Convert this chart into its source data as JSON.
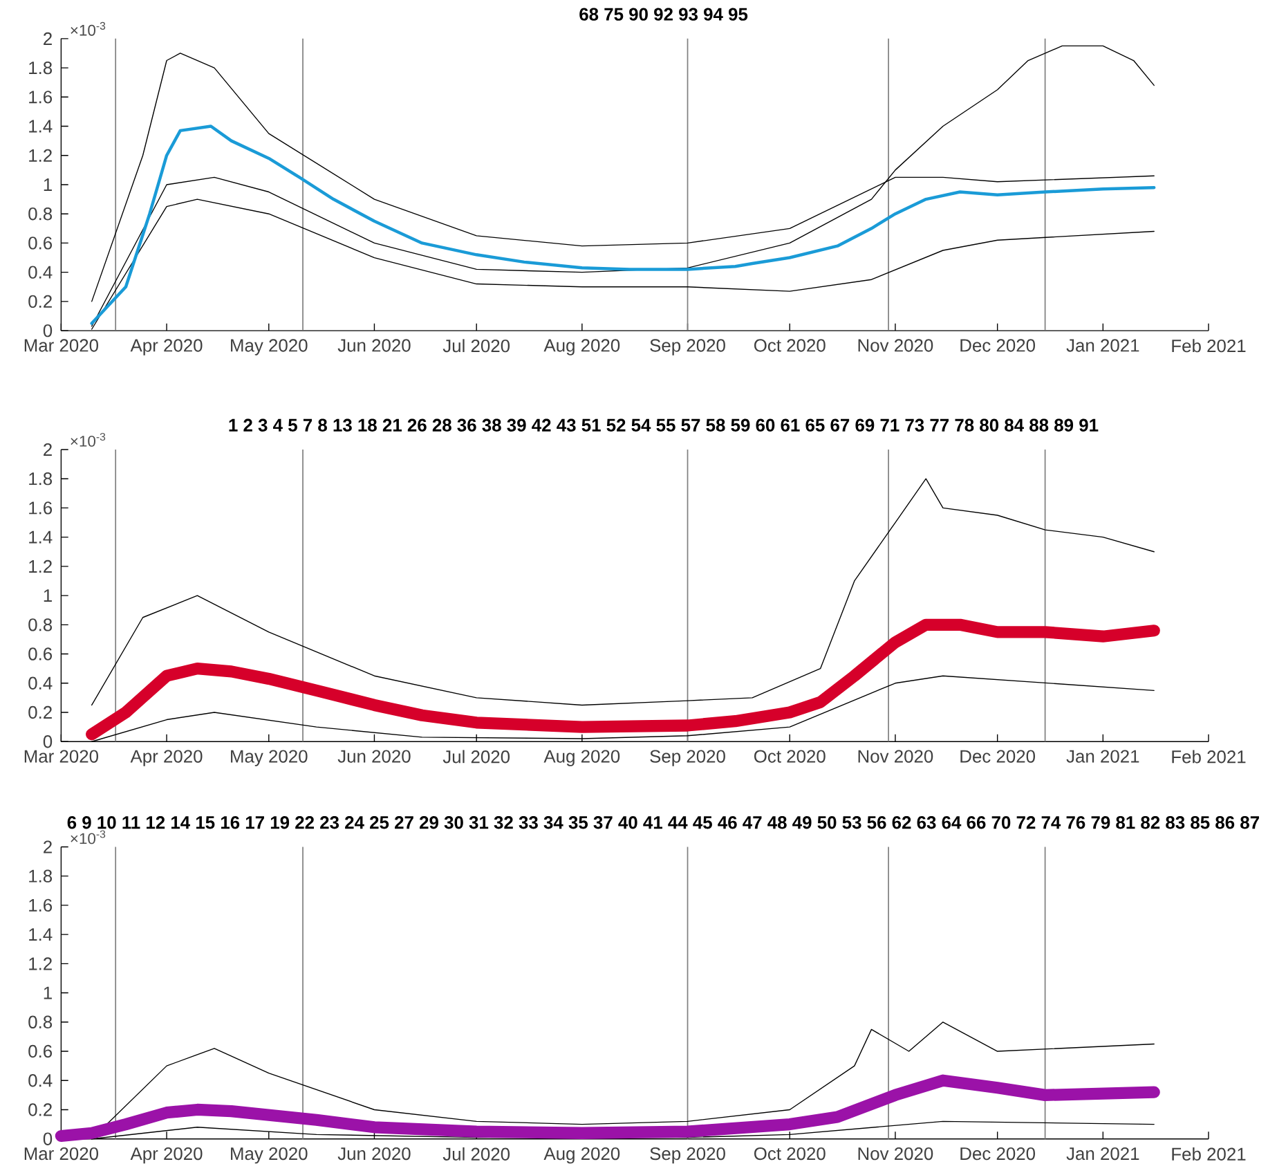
{
  "chart_data": [
    {
      "type": "line",
      "title": "68 75 90 92 93 94 95",
      "annotations": [
        "×10$^{-3}$"
      ],
      "xlim": [
        "2020-03-01",
        "2021-02-01"
      ],
      "xticks": [
        {
          "value": "2020-03-01",
          "label": "Mar 2020"
        },
        {
          "value": "2020-04-01",
          "label": "Apr 2020"
        },
        {
          "value": "2020-05-01",
          "label": "May 2020"
        },
        {
          "value": "2020-06-01",
          "label": "Jun 2020"
        },
        {
          "value": "2020-07-01",
          "label": "Jul 2020"
        },
        {
          "value": "2020-08-01",
          "label": "Aug 2020"
        },
        {
          "value": "2020-09-01",
          "label": "Sep 2020"
        },
        {
          "value": "2020-10-01",
          "label": "Oct 2020"
        },
        {
          "value": "2020-11-01",
          "label": "Nov 2020"
        },
        {
          "value": "2020-12-01",
          "label": "Dec 2020"
        },
        {
          "value": "2021-01-01",
          "label": "Jan 2021"
        },
        {
          "value": "2021-02-01",
          "label": "Feb 2021"
        }
      ],
      "ylim": [
        0,
        2
      ],
      "yticks": [
        0,
        0.2,
        0.4,
        0.6,
        0.8,
        1,
        1.2,
        1.4,
        1.6,
        1.8,
        2
      ],
      "ref_lines": [
        {
          "axis": "x",
          "value": "2020-03-17",
          "color": "#808080"
        },
        {
          "axis": "x",
          "value": "2020-05-11",
          "color": "#808080"
        },
        {
          "axis": "x",
          "value": "2020-09-01",
          "color": "#808080"
        },
        {
          "axis": "x",
          "value": "2020-10-30",
          "color": "#808080"
        },
        {
          "axis": "x",
          "value": "2020-12-15",
          "color": "#808080"
        }
      ],
      "series": [
        {
          "color": "#000000",
          "x": [
            "2020-03-10",
            "2020-04-01",
            "2020-04-15",
            "2020-05-01",
            "2020-06-01",
            "2020-07-01",
            "2020-08-01",
            "2020-09-01",
            "2020-10-01",
            "2020-10-25",
            "2020-11-01",
            "2020-11-15",
            "2020-12-01",
            "2020-12-10",
            "2020-12-20",
            "2021-01-01",
            "2021-01-10",
            "2021-01-16"
          ],
          "values": [
            0.03,
            1.0,
            1.05,
            0.95,
            0.6,
            0.42,
            0.4,
            0.43,
            0.6,
            0.9,
            1.1,
            1.4,
            1.65,
            1.85,
            1.95,
            1.95,
            1.85,
            1.68
          ]
        },
        {
          "color": "#000000",
          "x": [
            "2020-03-10",
            "2020-03-25",
            "2020-04-01",
            "2020-04-05",
            "2020-04-15",
            "2020-05-01",
            "2020-06-01",
            "2020-07-01",
            "2020-08-01",
            "2020-09-01",
            "2020-10-01",
            "2020-11-01",
            "2020-11-15",
            "2020-12-01",
            "2021-01-16"
          ],
          "values": [
            0.2,
            1.2,
            1.85,
            1.9,
            1.8,
            1.35,
            0.9,
            0.65,
            0.58,
            0.6,
            0.7,
            1.05,
            1.05,
            1.02,
            1.06
          ]
        },
        {
          "color": "#000000",
          "x": [
            "2020-03-10",
            "2020-04-01",
            "2020-04-10",
            "2020-05-01",
            "2020-06-01",
            "2020-07-01",
            "2020-08-01",
            "2020-09-01",
            "2020-10-01",
            "2020-10-25",
            "2020-11-15",
            "2020-12-01",
            "2021-01-16"
          ],
          "values": [
            0.01,
            0.85,
            0.9,
            0.8,
            0.5,
            0.32,
            0.3,
            0.3,
            0.27,
            0.35,
            0.55,
            0.62,
            0.68
          ]
        },
        {
          "color": "#1a9bd7",
          "x": [
            "2020-03-10",
            "2020-03-20",
            "2020-03-27",
            "2020-04-01",
            "2020-04-05",
            "2020-04-14",
            "2020-04-20",
            "2020-05-01",
            "2020-05-10",
            "2020-05-20",
            "2020-06-01",
            "2020-06-15",
            "2020-07-01",
            "2020-07-15",
            "2020-08-01",
            "2020-08-15",
            "2020-09-01",
            "2020-09-15",
            "2020-09-20",
            "2020-10-01",
            "2020-10-15",
            "2020-10-25",
            "2020-11-01",
            "2020-11-10",
            "2020-11-20",
            "2020-12-01",
            "2020-12-15",
            "2021-01-01",
            "2021-01-16"
          ],
          "values": [
            0.05,
            0.3,
            0.8,
            1.2,
            1.37,
            1.4,
            1.3,
            1.18,
            1.05,
            0.9,
            0.75,
            0.6,
            0.52,
            0.47,
            0.43,
            0.42,
            0.42,
            0.44,
            0.46,
            0.5,
            0.58,
            0.7,
            0.8,
            0.9,
            0.95,
            0.93,
            0.95,
            0.97,
            0.98
          ]
        }
      ]
    },
    {
      "type": "line",
      "title": "1 2 3 4 5 7 8 13 18 21 26 28 36 38 39 42 43 51 52 54 55 57 58 59 60 61 65 67 69 71 73 77 78 80 84 88 89 91",
      "annotations": [
        "×10$^{-3}$"
      ],
      "xlim": [
        "2020-03-01",
        "2021-02-01"
      ],
      "xticks": [
        {
          "value": "2020-03-01",
          "label": "Mar 2020"
        },
        {
          "value": "2020-04-01",
          "label": "Apr 2020"
        },
        {
          "value": "2020-05-01",
          "label": "May 2020"
        },
        {
          "value": "2020-06-01",
          "label": "Jun 2020"
        },
        {
          "value": "2020-07-01",
          "label": "Jul 2020"
        },
        {
          "value": "2020-08-01",
          "label": "Aug 2020"
        },
        {
          "value": "2020-09-01",
          "label": "Sep 2020"
        },
        {
          "value": "2020-10-01",
          "label": "Oct 2020"
        },
        {
          "value": "2020-11-01",
          "label": "Nov 2020"
        },
        {
          "value": "2020-12-01",
          "label": "Dec 2020"
        },
        {
          "value": "2021-01-01",
          "label": "Jan 2021"
        },
        {
          "value": "2021-02-01",
          "label": "Feb 2021"
        }
      ],
      "ylim": [
        0,
        2
      ],
      "yticks": [
        0,
        0.2,
        0.4,
        0.6,
        0.8,
        1,
        1.2,
        1.4,
        1.6,
        1.8,
        2
      ],
      "ref_lines": [
        {
          "axis": "x",
          "value": "2020-03-17",
          "color": "#808080"
        },
        {
          "axis": "x",
          "value": "2020-05-11",
          "color": "#808080"
        },
        {
          "axis": "x",
          "value": "2020-09-01",
          "color": "#808080"
        },
        {
          "axis": "x",
          "value": "2020-10-30",
          "color": "#808080"
        },
        {
          "axis": "x",
          "value": "2020-12-15",
          "color": "#808080"
        }
      ],
      "series": [
        {
          "color": "#000000",
          "x": [
            "2020-03-10",
            "2020-03-25",
            "2020-04-10",
            "2020-05-01",
            "2020-06-01",
            "2020-07-01",
            "2020-08-01",
            "2020-09-01",
            "2020-09-20",
            "2020-10-10",
            "2020-10-20",
            "2020-11-01",
            "2020-11-10",
            "2020-11-15",
            "2020-12-01",
            "2020-12-15",
            "2021-01-01",
            "2021-01-16"
          ],
          "values": [
            0.25,
            0.85,
            1.0,
            0.75,
            0.45,
            0.3,
            0.25,
            0.28,
            0.3,
            0.5,
            1.1,
            1.5,
            1.8,
            1.6,
            1.55,
            1.45,
            1.4,
            1.3
          ]
        },
        {
          "color": "#000000",
          "x": [
            "2020-03-10",
            "2020-04-01",
            "2020-04-15",
            "2020-05-15",
            "2020-06-15",
            "2020-08-01",
            "2020-09-01",
            "2020-10-01",
            "2020-11-01",
            "2020-11-15",
            "2021-01-16"
          ],
          "values": [
            0,
            0.15,
            0.2,
            0.1,
            0.03,
            0.02,
            0.04,
            0.1,
            0.4,
            0.45,
            0.35
          ]
        },
        {
          "color": "#d6002a",
          "x": [
            "2020-03-10",
            "2020-03-20",
            "2020-04-01",
            "2020-04-10",
            "2020-04-20",
            "2020-05-01",
            "2020-05-15",
            "2020-06-01",
            "2020-06-15",
            "2020-07-01",
            "2020-08-01",
            "2020-09-01",
            "2020-09-15",
            "2020-10-01",
            "2020-10-10",
            "2020-10-20",
            "2020-11-01",
            "2020-11-10",
            "2020-11-20",
            "2020-12-01",
            "2020-12-15",
            "2021-01-01",
            "2021-01-16"
          ],
          "values": [
            0.05,
            0.2,
            0.45,
            0.5,
            0.48,
            0.43,
            0.35,
            0.25,
            0.18,
            0.13,
            0.1,
            0.11,
            0.14,
            0.2,
            0.27,
            0.45,
            0.68,
            0.8,
            0.8,
            0.75,
            0.75,
            0.72,
            0.76
          ]
        }
      ]
    },
    {
      "type": "line",
      "title": "6 9 10 11 12 14 15 16 17 19 22 23 24 25 27 29 30 31 32 33 34 35 37 40 41 44 45 46 47 48 49 50 53 56 62 63 64 66 70 72 74 76 79 81 82 83 85 86 87",
      "annotations": [
        "×10$^{-3}$"
      ],
      "xlim": [
        "2020-03-01",
        "2021-02-01"
      ],
      "xticks": [
        {
          "value": "2020-03-01",
          "label": "Mar 2020"
        },
        {
          "value": "2020-04-01",
          "label": "Apr 2020"
        },
        {
          "value": "2020-05-01",
          "label": "May 2020"
        },
        {
          "value": "2020-06-01",
          "label": "Jun 2020"
        },
        {
          "value": "2020-07-01",
          "label": "Jul 2020"
        },
        {
          "value": "2020-08-01",
          "label": "Aug 2020"
        },
        {
          "value": "2020-09-01",
          "label": "Sep 2020"
        },
        {
          "value": "2020-10-01",
          "label": "Oct 2020"
        },
        {
          "value": "2020-11-01",
          "label": "Nov 2020"
        },
        {
          "value": "2020-12-01",
          "label": "Dec 2020"
        },
        {
          "value": "2021-01-01",
          "label": "Jan 2021"
        },
        {
          "value": "2021-02-01",
          "label": "Feb 2021"
        }
      ],
      "ylim": [
        0,
        2
      ],
      "yticks": [
        0,
        0.2,
        0.4,
        0.6,
        0.8,
        1,
        1.2,
        1.4,
        1.6,
        1.8,
        2
      ],
      "ref_lines": [
        {
          "axis": "x",
          "value": "2020-03-17",
          "color": "#808080"
        },
        {
          "axis": "x",
          "value": "2020-05-11",
          "color": "#808080"
        },
        {
          "axis": "x",
          "value": "2020-09-01",
          "color": "#808080"
        },
        {
          "axis": "x",
          "value": "2020-10-30",
          "color": "#808080"
        },
        {
          "axis": "x",
          "value": "2020-12-15",
          "color": "#808080"
        }
      ],
      "series": [
        {
          "color": "#000000",
          "x": [
            "2020-03-10",
            "2020-04-01",
            "2020-04-15",
            "2020-05-01",
            "2020-06-01",
            "2020-07-01",
            "2020-08-01",
            "2020-09-01",
            "2020-10-01",
            "2020-10-20",
            "2020-10-25",
            "2020-11-05",
            "2020-11-15",
            "2020-12-01",
            "2021-01-16"
          ],
          "values": [
            0,
            0.5,
            0.62,
            0.45,
            0.2,
            0.12,
            0.1,
            0.12,
            0.2,
            0.5,
            0.75,
            0.6,
            0.8,
            0.6,
            0.65
          ]
        },
        {
          "color": "#000000",
          "x": [
            "2020-03-10",
            "2020-04-10",
            "2020-05-15",
            "2020-07-01",
            "2020-09-01",
            "2020-10-01",
            "2020-11-15",
            "2021-01-16"
          ],
          "values": [
            0,
            0.08,
            0.03,
            0.01,
            0.01,
            0.03,
            0.12,
            0.1
          ]
        },
        {
          "color": "#9b12a8",
          "x": [
            "2020-03-01",
            "2020-03-10",
            "2020-03-20",
            "2020-04-01",
            "2020-04-10",
            "2020-04-20",
            "2020-05-15",
            "2020-06-01",
            "2020-07-01",
            "2020-08-01",
            "2020-09-01",
            "2020-10-01",
            "2020-10-15",
            "2020-11-01",
            "2020-11-15",
            "2020-12-01",
            "2020-12-15",
            "2021-01-16"
          ],
          "values": [
            0.02,
            0.04,
            0.1,
            0.18,
            0.2,
            0.19,
            0.13,
            0.08,
            0.05,
            0.04,
            0.05,
            0.1,
            0.15,
            0.3,
            0.4,
            0.35,
            0.3,
            0.32
          ]
        }
      ]
    }
  ]
}
